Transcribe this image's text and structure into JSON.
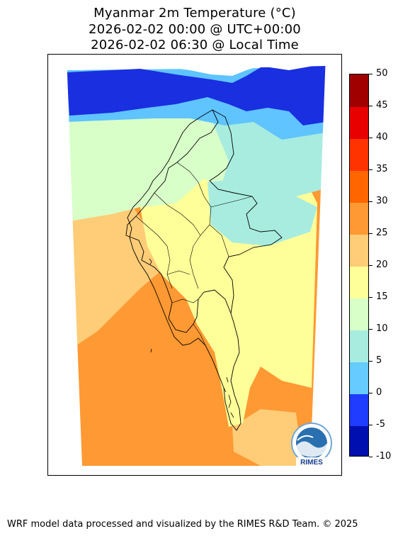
{
  "title": {
    "line1": "Myanmar 2m Temperature (°C)",
    "line2": "2026-02-02 00:00 @ UTC+00:00",
    "line3": "2026-02-02 06:30 @ Local Time"
  },
  "colorbar": {
    "levels": [
      -10,
      -5,
      0,
      5,
      10,
      15,
      20,
      25,
      30,
      35,
      40,
      45,
      50
    ],
    "tick_labels": [
      "50",
      "45",
      "40",
      "35",
      "30",
      "25",
      "20",
      "15",
      "10",
      "5",
      "0",
      "-5",
      "-10"
    ],
    "colors": [
      "#0010b0",
      "#1f3cff",
      "#66ccff",
      "#a8ece0",
      "#d8ffc8",
      "#ffff99",
      "#ffcc77",
      "#ff9933",
      "#ff6600",
      "#ff3300",
      "#e80000",
      "#a00000"
    ]
  },
  "map": {
    "logo_text": "RIMES",
    "zone_colors": {
      "snow_white": "#ffffff",
      "deep_cold": "#1a2fe0",
      "cold": "#5fc4ff",
      "cool": "#a8ece0",
      "mild": "#d8ffc8",
      "warm": "#ffff99",
      "sea_warm": "#ffcc77",
      "sea_hot": "#ff9933"
    }
  },
  "footer": {
    "credit": "WRF model data processed and visualized by the RIMES R&D Team. © 2025"
  }
}
